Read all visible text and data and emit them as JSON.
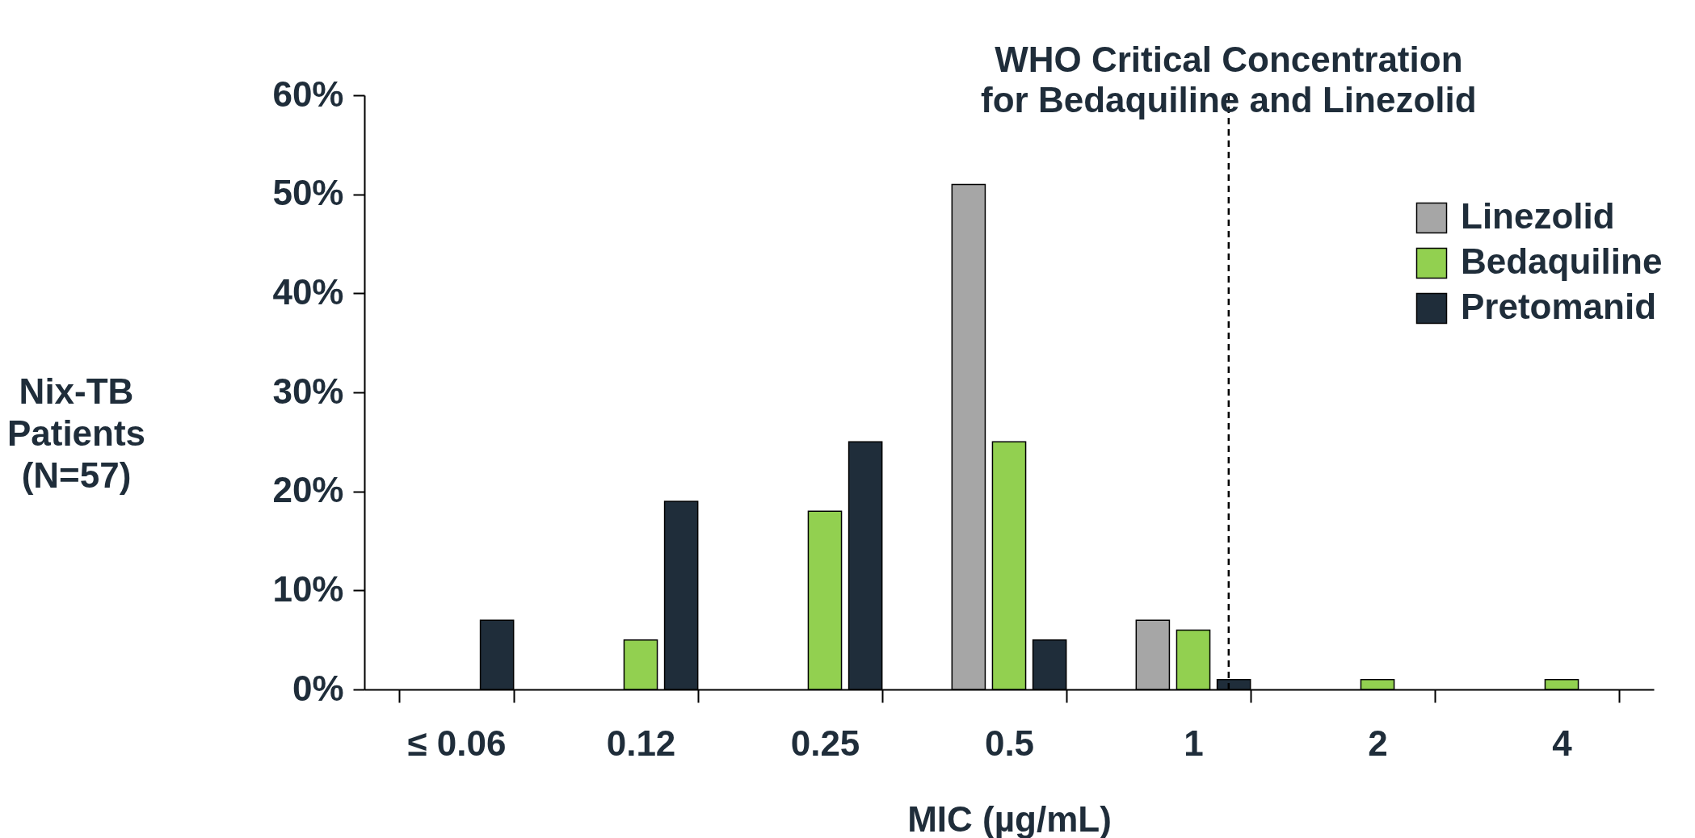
{
  "chart_data": {
    "type": "bar",
    "title": "WHO Critical Concentration\nfor Bedaquiline and Linezolid",
    "xlabel": "MIC (µg/mL)",
    "ylabel": "Nix-TB\nPatients\n(N=57)",
    "categories": [
      "≤ 0.06",
      "0.12",
      "0.25",
      "0.5",
      "1",
      "2",
      "4"
    ],
    "series": [
      {
        "name": "Linezolid",
        "color": "#a6a6a6",
        "values": [
          null,
          null,
          null,
          51,
          7,
          null,
          null
        ]
      },
      {
        "name": "Bedaquiline",
        "color": "#92d050",
        "values": [
          null,
          5,
          18,
          25,
          6,
          1,
          1
        ]
      },
      {
        "name": "Pretomanid",
        "color": "#1f2d3a",
        "values": [
          7,
          19,
          25,
          5,
          1,
          null,
          null
        ]
      }
    ],
    "ylim": [
      0,
      60
    ],
    "yticks": [
      {
        "value": 0,
        "label": "0%"
      },
      {
        "value": 10,
        "label": "10%"
      },
      {
        "value": 20,
        "label": "20%"
      },
      {
        "value": 30,
        "label": "30%"
      },
      {
        "value": 40,
        "label": "40%"
      },
      {
        "value": 50,
        "label": "50%"
      },
      {
        "value": 60,
        "label": "60%"
      }
    ],
    "ref_lines": [
      {
        "axis": "x",
        "value": "1",
        "line_style": "dashed"
      }
    ],
    "legend": "top right",
    "grid": false
  }
}
